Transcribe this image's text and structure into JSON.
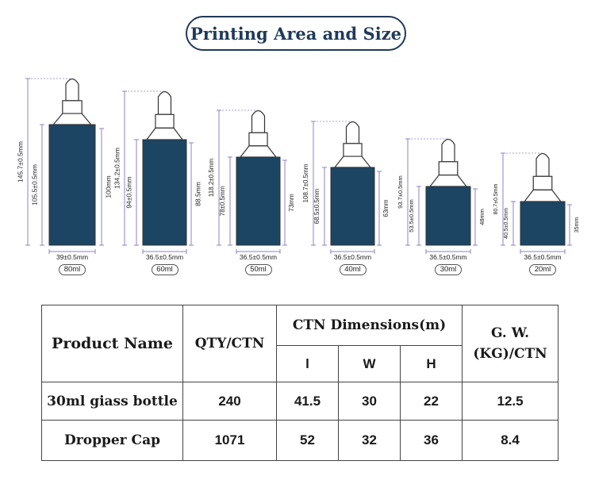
{
  "title": "Printing Area and Size",
  "colors": {
    "bottle": "#1b4563",
    "outline": "#1f3a5a",
    "dim_line": "#8c82c8"
  },
  "bottles": [
    {
      "size": "80ml",
      "total_height": "145.7±0.5mm",
      "body_height": "105.5±0.5mm",
      "print_height": "100mm",
      "width": "39±0.5mm"
    },
    {
      "size": "60ml",
      "total_height": "134.2±0.5mm",
      "body_height": "94±0.5mm",
      "print_height": "88.5mm",
      "width": "36.5±0.5mm"
    },
    {
      "size": "50ml",
      "total_height": "118.2±0.5mm",
      "body_height": "78±0.5mm",
      "print_height": "73mm",
      "width": "36.5±0.5mm"
    },
    {
      "size": "40ml",
      "total_height": "108.7±0.5mm",
      "body_height": "68.5±0.5mm",
      "print_height": "63mm",
      "width": "36.5±0.5mm"
    },
    {
      "size": "30ml",
      "total_height": "93.7±0.5mm",
      "body_height": "53.5±0.5mm",
      "print_height": "48mm",
      "width": "36.5±0.5mm"
    },
    {
      "size": "20ml",
      "total_height": "80.7±0.5mm",
      "body_height": "40.5±0.5mm",
      "print_height": "35mm",
      "width": "36.5±0.5mm"
    }
  ],
  "table": {
    "headers": {
      "product_name": "Product Name",
      "qty": "QTY/CTN",
      "ctn_dimensions": "CTN Dimensions(m)",
      "l": "l",
      "w": "W",
      "h": "H",
      "gw_line1": "G. W.",
      "gw_line2": "(KG)/CTN"
    },
    "rows": [
      {
        "name": "30ml giass bottle",
        "qty": "240",
        "l": "41.5",
        "w": "30",
        "h": "22",
        "gw": "12.5"
      },
      {
        "name": "Dropper Cap",
        "qty": "1071",
        "l": "52",
        "w": "32",
        "h": "36",
        "gw": "8.4"
      }
    ]
  }
}
